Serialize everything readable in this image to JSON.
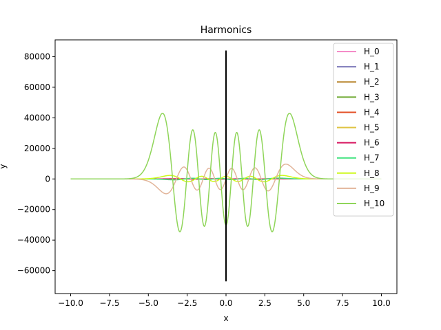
{
  "chart_data": {
    "type": "line",
    "title": "Harmonics",
    "xlabel": "x",
    "ylabel": "y",
    "xlim": [
      -11,
      11
    ],
    "ylim": [
      -75000,
      91000
    ],
    "xticks": [
      -10.0,
      -7.5,
      -5.0,
      -2.5,
      0.0,
      2.5,
      5.0,
      7.5,
      10.0
    ],
    "xtick_labels": [
      "−10.0",
      "−7.5",
      "−5.0",
      "−2.5",
      "0.0",
      "2.5",
      "5.0",
      "7.5",
      "10.0"
    ],
    "yticks": [
      -60000,
      -40000,
      -20000,
      0,
      20000,
      40000,
      60000,
      80000
    ],
    "ytick_labels": [
      "−60000",
      "−40000",
      "−20000",
      "0",
      "20000",
      "40000",
      "60000",
      "80000"
    ],
    "grid": false,
    "legend_position": "top-right",
    "vertical_line": {
      "x": 0,
      "y_from": -67000,
      "y_to": 84000,
      "color": "#000000"
    },
    "series": [
      {
        "name": "H_0",
        "n": 0,
        "color": "#f48cc8"
      },
      {
        "name": "H_1",
        "n": 1,
        "color": "#7b77b8"
      },
      {
        "name": "H_2",
        "n": 2,
        "color": "#b8862e"
      },
      {
        "name": "H_3",
        "n": 3,
        "color": "#76ad3d"
      },
      {
        "name": "H_4",
        "n": 4,
        "color": "#e4532a"
      },
      {
        "name": "H_5",
        "n": 5,
        "color": "#dfc342"
      },
      {
        "name": "H_6",
        "n": 6,
        "color": "#d81760"
      },
      {
        "name": "H_7",
        "n": 7,
        "color": "#3fe27e"
      },
      {
        "name": "H_8",
        "n": 8,
        "color": "#cdf91a"
      },
      {
        "name": "H_9",
        "n": 9,
        "color": "#e2b59a"
      },
      {
        "name": "H_10",
        "n": 10,
        "color": "#8fd559"
      }
    ]
  }
}
